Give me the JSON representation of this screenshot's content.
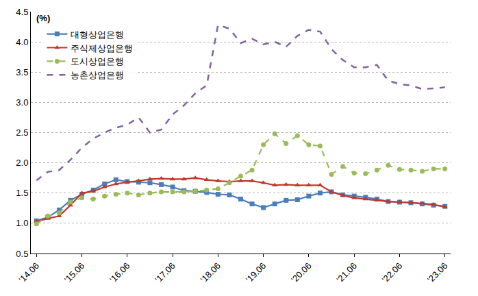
{
  "chart_data": {
    "type": "line",
    "y_label": "(%)",
    "categories": [
      "'14.06",
      null,
      null,
      null,
      "'15.06",
      null,
      null,
      null,
      "'16.06",
      null,
      null,
      null,
      "'17.06",
      null,
      null,
      null,
      "'18.06",
      null,
      null,
      null,
      "'19.06",
      null,
      null,
      null,
      "'20.06",
      null,
      null,
      null,
      "'21.06",
      null,
      null,
      null,
      "'22.06",
      null,
      null,
      null,
      "'23.06"
    ],
    "series": [
      {
        "name": "대형상업은행",
        "color": "#4a7ebb",
        "marker": "square",
        "line_style": "solid",
        "values": [
          1.04,
          1.1,
          1.22,
          1.38,
          1.48,
          1.55,
          1.65,
          1.72,
          1.69,
          1.68,
          1.67,
          1.64,
          1.6,
          1.54,
          1.53,
          1.51,
          1.48,
          1.47,
          1.4,
          1.32,
          1.26,
          1.32,
          1.38,
          1.39,
          1.45,
          1.5,
          1.52,
          1.47,
          1.45,
          1.43,
          1.4,
          1.36,
          1.35,
          1.34,
          1.32,
          1.3,
          1.28
        ]
      },
      {
        "name": "주식제상업은행",
        "color": "#c0392b",
        "marker": "triangle-up",
        "line_style": "solid",
        "values": [
          1.03,
          1.08,
          1.12,
          1.3,
          1.5,
          1.53,
          1.6,
          1.65,
          1.68,
          1.7,
          1.73,
          1.74,
          1.73,
          1.73,
          1.75,
          1.72,
          1.7,
          1.69,
          1.7,
          1.7,
          1.67,
          1.63,
          1.64,
          1.63,
          1.63,
          1.63,
          1.52,
          1.46,
          1.42,
          1.4,
          1.38,
          1.36,
          1.35,
          1.34,
          1.33,
          1.31,
          1.27
        ]
      },
      {
        "name": "도시상업은행",
        "color": "#9bbb59",
        "marker": "circle",
        "line_style": "dash",
        "values": [
          0.99,
          1.12,
          1.17,
          1.35,
          1.42,
          1.4,
          1.45,
          1.48,
          1.5,
          1.47,
          1.5,
          1.52,
          1.52,
          1.52,
          1.53,
          1.55,
          1.57,
          1.67,
          1.78,
          1.88,
          2.3,
          2.48,
          2.32,
          2.45,
          2.3,
          2.28,
          1.81,
          1.94,
          1.83,
          1.82,
          1.88,
          1.96,
          1.89,
          1.88,
          1.86,
          1.9,
          1.9
        ]
      },
      {
        "name": "농촌상업은행",
        "color": "#8064a2",
        "marker": "none",
        "line_style": "dash",
        "values": [
          1.71,
          1.85,
          1.88,
          2.05,
          2.25,
          2.4,
          2.5,
          2.58,
          2.63,
          2.75,
          2.5,
          2.55,
          2.8,
          2.95,
          3.15,
          3.28,
          4.28,
          4.22,
          3.98,
          4.05,
          3.96,
          4.0,
          3.92,
          4.1,
          4.2,
          4.17,
          3.88,
          3.7,
          3.58,
          3.58,
          3.62,
          3.36,
          3.3,
          3.28,
          3.22,
          3.23,
          3.25
        ]
      }
    ],
    "ylim": [
      0.5,
      4.5
    ],
    "yticks": [
      0.5,
      {
        "value": 1.0,
        "label": "1.0"
      },
      1.5,
      {
        "value": 2.0,
        "label": "2.0"
      },
      2.5,
      {
        "value": 3.0,
        "label": "3.0"
      },
      3.5,
      {
        "value": 4.0,
        "label": "4.0"
      },
      4.5
    ],
    "grid": true,
    "legend": "upper left"
  }
}
